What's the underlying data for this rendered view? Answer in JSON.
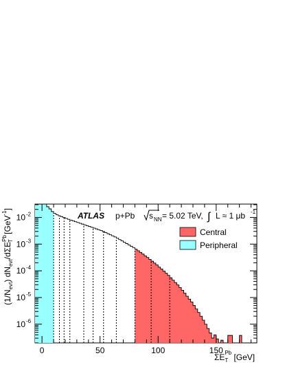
{
  "chart_data": {
    "type": "histogram",
    "experiment": "ATLAS",
    "system": "p+Pb",
    "energy_text": "s",
    "energy_sub": "NN",
    "energy_value": " = 5.02 TeV,",
    "lumi_text": "L ≈ 1 μb",
    "lumi_sup": "-1",
    "xlabel": "ΣE",
    "xlabel_sub": "T",
    "xlabel_sup": "Pb",
    "xlabel_unit": " [GeV]",
    "ylabel": "(1/N",
    "ylabel_sub": "evt",
    "ylabel_mid": ") dN",
    "ylabel_sub2": "evt",
    "ylabel_mid2": "/dΣE",
    "ylabel_sup3": "Pb",
    "ylabel_sub3": "T",
    "ylabel_unit": " [GeV",
    "ylabel_unit_sup": "-1",
    "ylabel_unit_end": "]",
    "xlim": [
      -6,
      185
    ],
    "ylim_log10": [
      -6.7,
      -1.5
    ],
    "log_y": true,
    "x_ticks": [
      0,
      50,
      100,
      150
    ],
    "y_ticks": [
      {
        "base": "10",
        "exp": "-2",
        "value": -2
      },
      {
        "base": "10",
        "exp": "-3",
        "value": -3
      },
      {
        "base": "10",
        "exp": "-4",
        "value": -4
      },
      {
        "base": "10",
        "exp": "-5",
        "value": -5
      },
      {
        "base": "10",
        "exp": "-6",
        "value": -6
      }
    ],
    "bin_width": 2,
    "x_start": -6,
    "log10_counts": [
      -1.5,
      -1.5,
      -1.5,
      -1.5,
      -1.5,
      -1.6,
      -1.68,
      -1.78,
      -1.85,
      -1.9,
      -1.94,
      -1.97,
      -2.0,
      -2.04,
      -2.07,
      -2.1,
      -2.13,
      -2.16,
      -2.19,
      -2.22,
      -2.25,
      -2.28,
      -2.31,
      -2.34,
      -2.37,
      -2.4,
      -2.43,
      -2.46,
      -2.49,
      -2.53,
      -2.57,
      -2.61,
      -2.65,
      -2.69,
      -2.73,
      -2.78,
      -2.83,
      -2.88,
      -2.93,
      -2.98,
      -3.03,
      -3.08,
      -3.13,
      -3.19,
      -3.25,
      -3.31,
      -3.37,
      -3.44,
      -3.5,
      -3.57,
      -3.64,
      -3.71,
      -3.78,
      -3.86,
      -3.93,
      -4.01,
      -4.09,
      -4.17,
      -4.26,
      -4.35,
      -4.44,
      -4.53,
      -4.63,
      -4.73,
      -4.84,
      -4.95,
      -5.06,
      -5.17,
      -5.3,
      -5.43,
      -5.56,
      -5.7,
      -5.85,
      -6.0,
      -6.16,
      -6.33,
      -6.52,
      -6.4,
      -6.55,
      -6.7,
      -6.6,
      -6.7,
      -6.7,
      -6.42,
      -6.42,
      -6.7,
      -6.7,
      -6.7,
      -6.42,
      -6.7,
      -6.7,
      -6.7,
      -6.7,
      -6.7,
      -6.7
    ],
    "centrality_edges": [
      10,
      15,
      19,
      24,
      36,
      44,
      53,
      64,
      80,
      94,
      110
    ],
    "series": [
      {
        "name": "Central",
        "color": "#ff6666",
        "x_range": [
          80,
          185
        ]
      },
      {
        "name": "Peripheral",
        "color": "#99ffff",
        "x_range": [
          -6,
          10
        ]
      }
    ]
  }
}
